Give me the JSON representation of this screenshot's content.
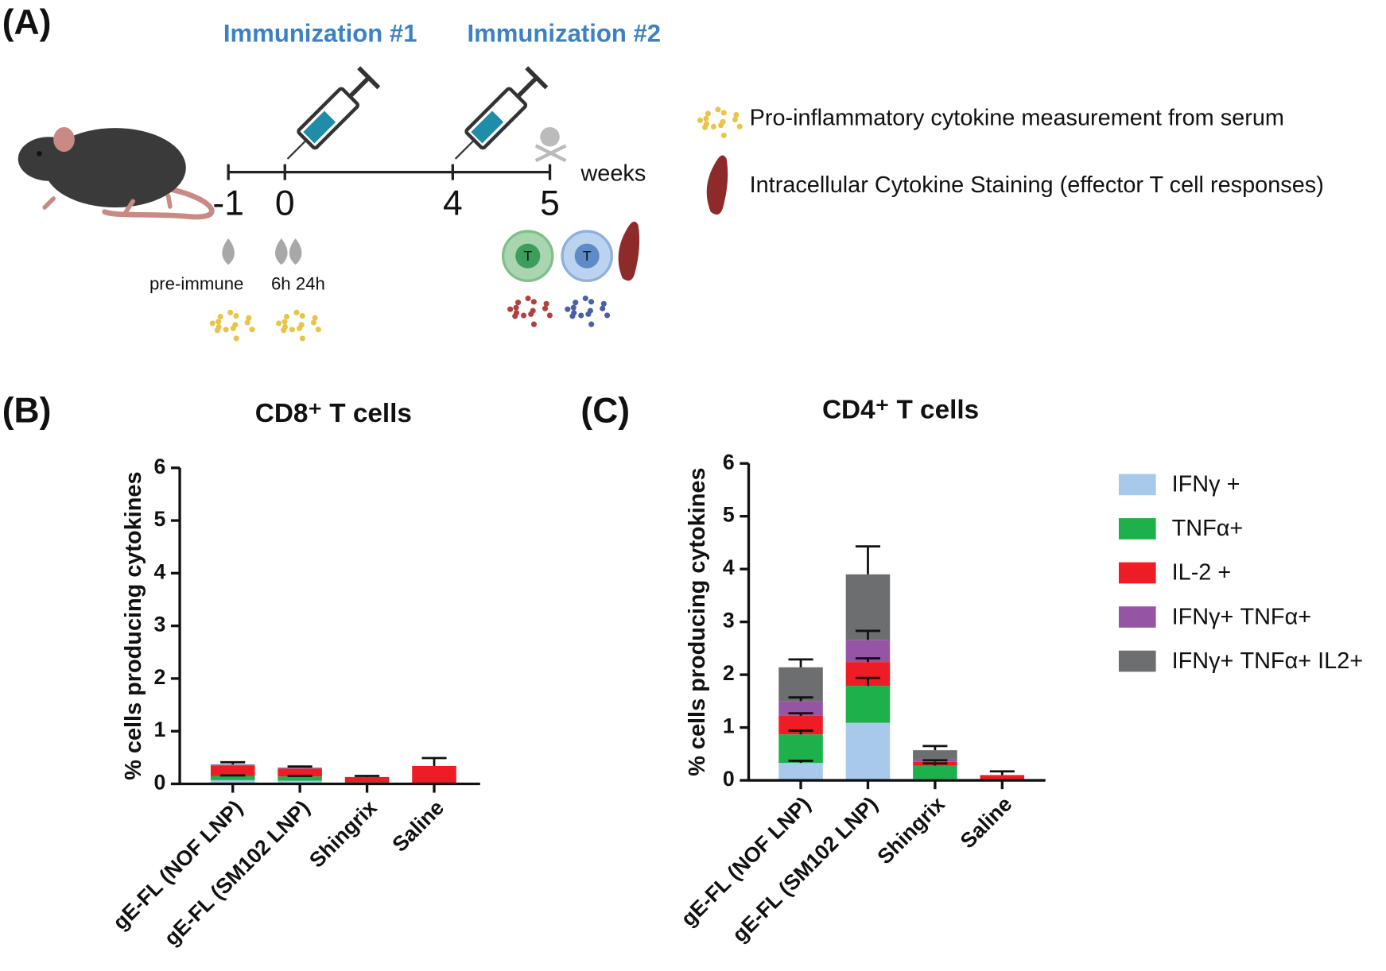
{
  "diagram": {
    "panel": "(A)",
    "immunization1": "Immunization #1",
    "immunization2": "Immunization #2",
    "timepoints": [
      "-1",
      "0",
      "4",
      "5"
    ],
    "time_unit": "weeks",
    "bleed1": "pre-immune",
    "bleed2": "6h 24h",
    "cell_label": "T",
    "legend_serum": "Pro-inflammatory cytokine measurement from serum",
    "legend_spleen": "Intracellular Cytokine Staining (effector T cell responses)"
  },
  "chart_data": [
    {
      "type": "stacked_bar",
      "panel": "(B)",
      "title": "CD8⁺ T cells",
      "y_label": "% cells producing cytokines",
      "categories": [
        "gE-FL (NOF LNP)",
        "gE-FL (SM102 LNP)",
        "Shingrix",
        "Saline"
      ],
      "ylim": [
        0,
        6
      ],
      "yticks": [
        0,
        1,
        2,
        3,
        4,
        5,
        6
      ],
      "series": [
        {
          "color": "#a8c8ec",
          "values": [
            0.07,
            0.06,
            0.01,
            0.01
          ],
          "errors": [
            null,
            null,
            null,
            null
          ]
        },
        {
          "color": "#1db04b",
          "values": [
            0.08,
            0.08,
            0.02,
            0.01
          ],
          "errors": [
            0.01,
            0.01,
            null,
            null
          ]
        },
        {
          "color": "#ee1c24",
          "values": [
            0.2,
            0.15,
            0.1,
            0.32
          ],
          "errors": [
            null,
            null,
            null,
            null
          ]
        },
        {
          "color": "#9655a4",
          "values": [
            0.01,
            0.01,
            0,
            0
          ],
          "errors": [
            null,
            null,
            null,
            null
          ]
        },
        {
          "color": "#6d6e70",
          "values": [
            0.01,
            0.01,
            0,
            0
          ],
          "errors": [
            0.04,
            0.02,
            0.02,
            0.15
          ]
        }
      ]
    },
    {
      "type": "stacked_bar",
      "panel": "(C)",
      "title": "CD4⁺ T cells",
      "y_label": "% cells producing cytokines",
      "categories": [
        "gE-FL (NOF LNP)",
        "gE-FL (SM102 LNP)",
        "Shingrix",
        "Saline"
      ],
      "ylim": [
        0,
        6
      ],
      "yticks": [
        0,
        1,
        2,
        3,
        4,
        5,
        6
      ],
      "legend": "right",
      "series": [
        {
          "name": "IFNγ +",
          "color": "#a8c8ec",
          "values": [
            0.33,
            1.09,
            0.03,
            0.01
          ],
          "errors": [
            0.04,
            null,
            null,
            null
          ]
        },
        {
          "name": "TNFα+",
          "color": "#1db04b",
          "values": [
            0.54,
            0.7,
            0.25,
            0.01
          ],
          "errors": [
            0.07,
            0.15,
            0.04,
            null
          ]
        },
        {
          "name": "IL-2 +",
          "color": "#ee1c24",
          "values": [
            0.35,
            0.45,
            0.07,
            0.08
          ],
          "errors": [
            0.05,
            0.07,
            0.03,
            null
          ]
        },
        {
          "name": "IFNγ+ TNFα+",
          "color": "#9655a4",
          "values": [
            0.28,
            0.42,
            0.05,
            0
          ],
          "errors": [
            0.07,
            0.17,
            null,
            null
          ]
        },
        {
          "name": "IFNγ+ TNFα+ IL2+",
          "color": "#6d6e70",
          "values": [
            0.64,
            1.24,
            0.17,
            0
          ],
          "errors": [
            0.15,
            0.53,
            0.08,
            0.07
          ]
        }
      ]
    }
  ]
}
